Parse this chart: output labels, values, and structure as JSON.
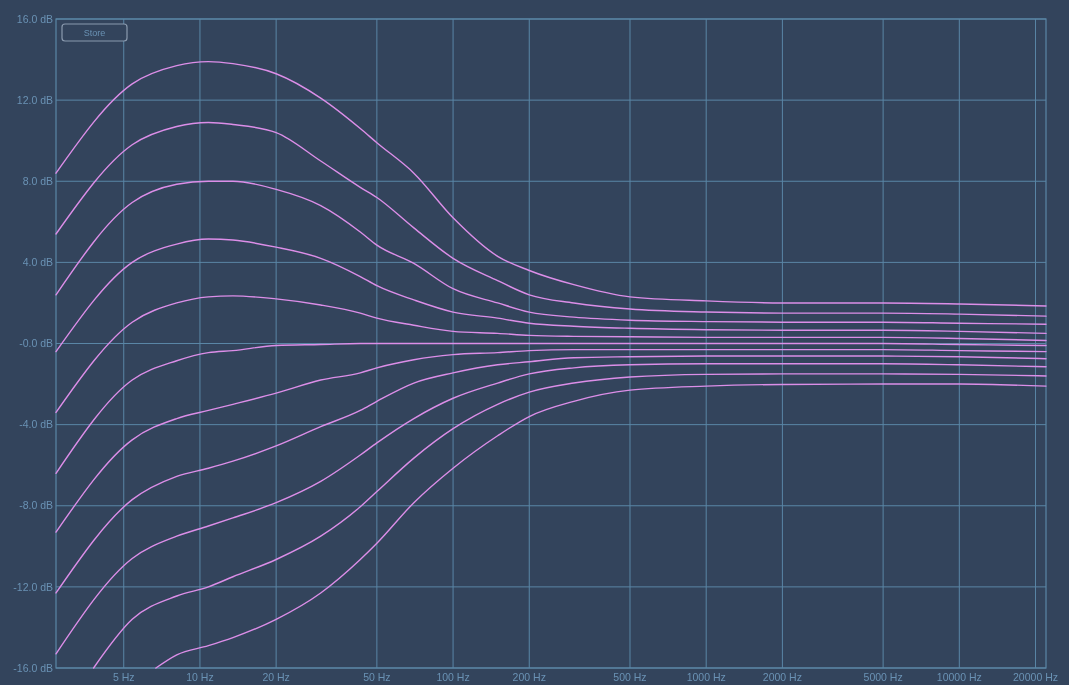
{
  "chart_data": {
    "type": "line",
    "log": "x",
    "grid": true,
    "line_style": "solid",
    "marker": "none",
    "annotations": [
      "Store"
    ],
    "xlim": [
      2.7,
      22000
    ],
    "xticks": [
      {
        "value": 5,
        "label": "5 Hz"
      },
      {
        "value": 10,
        "label": "10 Hz"
      },
      {
        "value": 20,
        "label": "20 Hz"
      },
      {
        "value": 50,
        "label": "50 Hz"
      },
      {
        "value": 100,
        "label": "100 Hz"
      },
      {
        "value": 200,
        "label": "200 Hz"
      },
      {
        "value": 500,
        "label": "500 Hz"
      },
      {
        "value": 1000,
        "label": "1000 Hz"
      },
      {
        "value": 2000,
        "label": "2000 Hz"
      },
      {
        "value": 5000,
        "label": "5000 Hz"
      },
      {
        "value": 10000,
        "label": "10000 Hz"
      },
      {
        "value": 20000,
        "label": "20000 Hz"
      }
    ],
    "ylim": [
      -16,
      16
    ],
    "yticks": [
      {
        "value": 16,
        "label": "16.0 dB"
      },
      {
        "value": 12,
        "label": "12.0 dB"
      },
      {
        "value": 8,
        "label": "8.0 dB"
      },
      {
        "value": 4,
        "label": "4.0 dB"
      },
      {
        "value": 0,
        "label": "-0.0 dB"
      },
      {
        "value": -4,
        "label": "-4.0 dB"
      },
      {
        "value": -8,
        "label": "-8.0 dB"
      },
      {
        "value": -12,
        "label": "-12.0 dB"
      },
      {
        "value": -16,
        "label": "-16.0 dB"
      }
    ],
    "x": [
      2.7,
      5.4,
      8.1,
      10.8,
      13.5,
      20,
      30,
      43,
      50,
      70,
      100,
      150,
      200,
      300,
      500,
      1000,
      2000,
      5000,
      10000,
      22000
    ],
    "series": [
      {
        "color": "#dc8ee8",
        "values": [
          8.4,
          12.8,
          13.7,
          13.9,
          13.8,
          13.3,
          12.1,
          10.6,
          9.9,
          8.4,
          6.2,
          4.3,
          3.6,
          2.9,
          2.3,
          2.1,
          2.0,
          2.0,
          1.95,
          1.85
        ]
      },
      {
        "color": "#dc8ee8",
        "values": [
          5.4,
          9.8,
          10.7,
          10.9,
          10.8,
          10.4,
          9.0,
          7.7,
          7.2,
          5.7,
          4.2,
          3.1,
          2.4,
          2.0,
          1.7,
          1.55,
          1.5,
          1.5,
          1.45,
          1.35
        ]
      },
      {
        "color": "#dc8ee8",
        "values": [
          2.4,
          6.95,
          7.85,
          8.0,
          8.0,
          7.6,
          6.8,
          5.5,
          4.85,
          3.95,
          2.7,
          2.0,
          1.55,
          1.3,
          1.15,
          1.08,
          1.05,
          1.05,
          1.0,
          0.95
        ]
      },
      {
        "color": "#dc8ee8",
        "values": [
          -0.4,
          4.0,
          4.9,
          5.15,
          5.1,
          4.75,
          4.2,
          3.3,
          2.85,
          2.15,
          1.55,
          1.25,
          1.0,
          0.85,
          0.75,
          0.68,
          0.65,
          0.65,
          0.6,
          0.5
        ]
      },
      {
        "color": "#dc8ee8",
        "values": [
          -3.4,
          1.05,
          2.0,
          2.3,
          2.35,
          2.2,
          1.9,
          1.5,
          1.25,
          0.9,
          0.6,
          0.5,
          0.4,
          0.35,
          0.33,
          0.3,
          0.3,
          0.3,
          0.25,
          0.15
        ]
      },
      {
        "color": "#dc8ee8",
        "values": [
          -6.4,
          -1.8,
          -0.85,
          -0.45,
          -0.35,
          -0.1,
          -0.05,
          0,
          0,
          0,
          0,
          0,
          0,
          0,
          0,
          0,
          0,
          0,
          -0.05,
          -0.1
        ]
      },
      {
        "color": "#dc8ee8",
        "values": [
          -9.3,
          -4.75,
          -3.7,
          -3.3,
          -3.0,
          -2.45,
          -1.8,
          -1.45,
          -1.2,
          -0.8,
          -0.55,
          -0.45,
          -0.35,
          -0.3,
          -0.3,
          -0.3,
          -0.3,
          -0.3,
          -0.35,
          -0.4
        ]
      },
      {
        "color": "#dc8ee8",
        "values": [
          -12.3,
          -7.7,
          -6.55,
          -6.15,
          -5.8,
          -5.05,
          -4.1,
          -3.3,
          -2.85,
          -1.95,
          -1.45,
          -1.05,
          -0.9,
          -0.7,
          -0.65,
          -0.62,
          -0.62,
          -0.62,
          -0.65,
          -0.75
        ]
      },
      {
        "color": "#dc8ee8",
        "values": [
          -15.3,
          -10.6,
          -9.5,
          -9.0,
          -8.6,
          -7.85,
          -6.8,
          -5.5,
          -4.9,
          -3.7,
          -2.7,
          -1.95,
          -1.5,
          -1.2,
          -1.05,
          -1.0,
          -1.0,
          -1.0,
          -1.05,
          -1.15
        ]
      },
      {
        "color": "#dc8ee8",
        "x": [
          3.8,
          5.4,
          8.1,
          10.8,
          13.5,
          20,
          30,
          43,
          50,
          70,
          100,
          150,
          200,
          300,
          500,
          1000,
          2000,
          5000,
          10000,
          22000
        ],
        "values": [
          -16,
          -13.6,
          -12.45,
          -12.0,
          -11.5,
          -10.65,
          -9.5,
          -8.05,
          -7.3,
          -5.65,
          -4.2,
          -3.0,
          -2.4,
          -1.95,
          -1.65,
          -1.52,
          -1.5,
          -1.5,
          -1.52,
          -1.6
        ]
      },
      {
        "color": "#dc8ee8",
        "x": [
          6.7,
          8.1,
          10.8,
          13.5,
          20,
          30,
          43,
          50,
          70,
          100,
          150,
          200,
          300,
          500,
          1000,
          2000,
          5000,
          10000,
          22000
        ],
        "values": [
          -16,
          -15.35,
          -14.9,
          -14.5,
          -13.6,
          -12.3,
          -10.65,
          -9.85,
          -7.85,
          -6.15,
          -4.55,
          -3.6,
          -2.85,
          -2.3,
          -2.1,
          -2.02,
          -2.0,
          -2.0,
          -2.1
        ]
      }
    ]
  }
}
